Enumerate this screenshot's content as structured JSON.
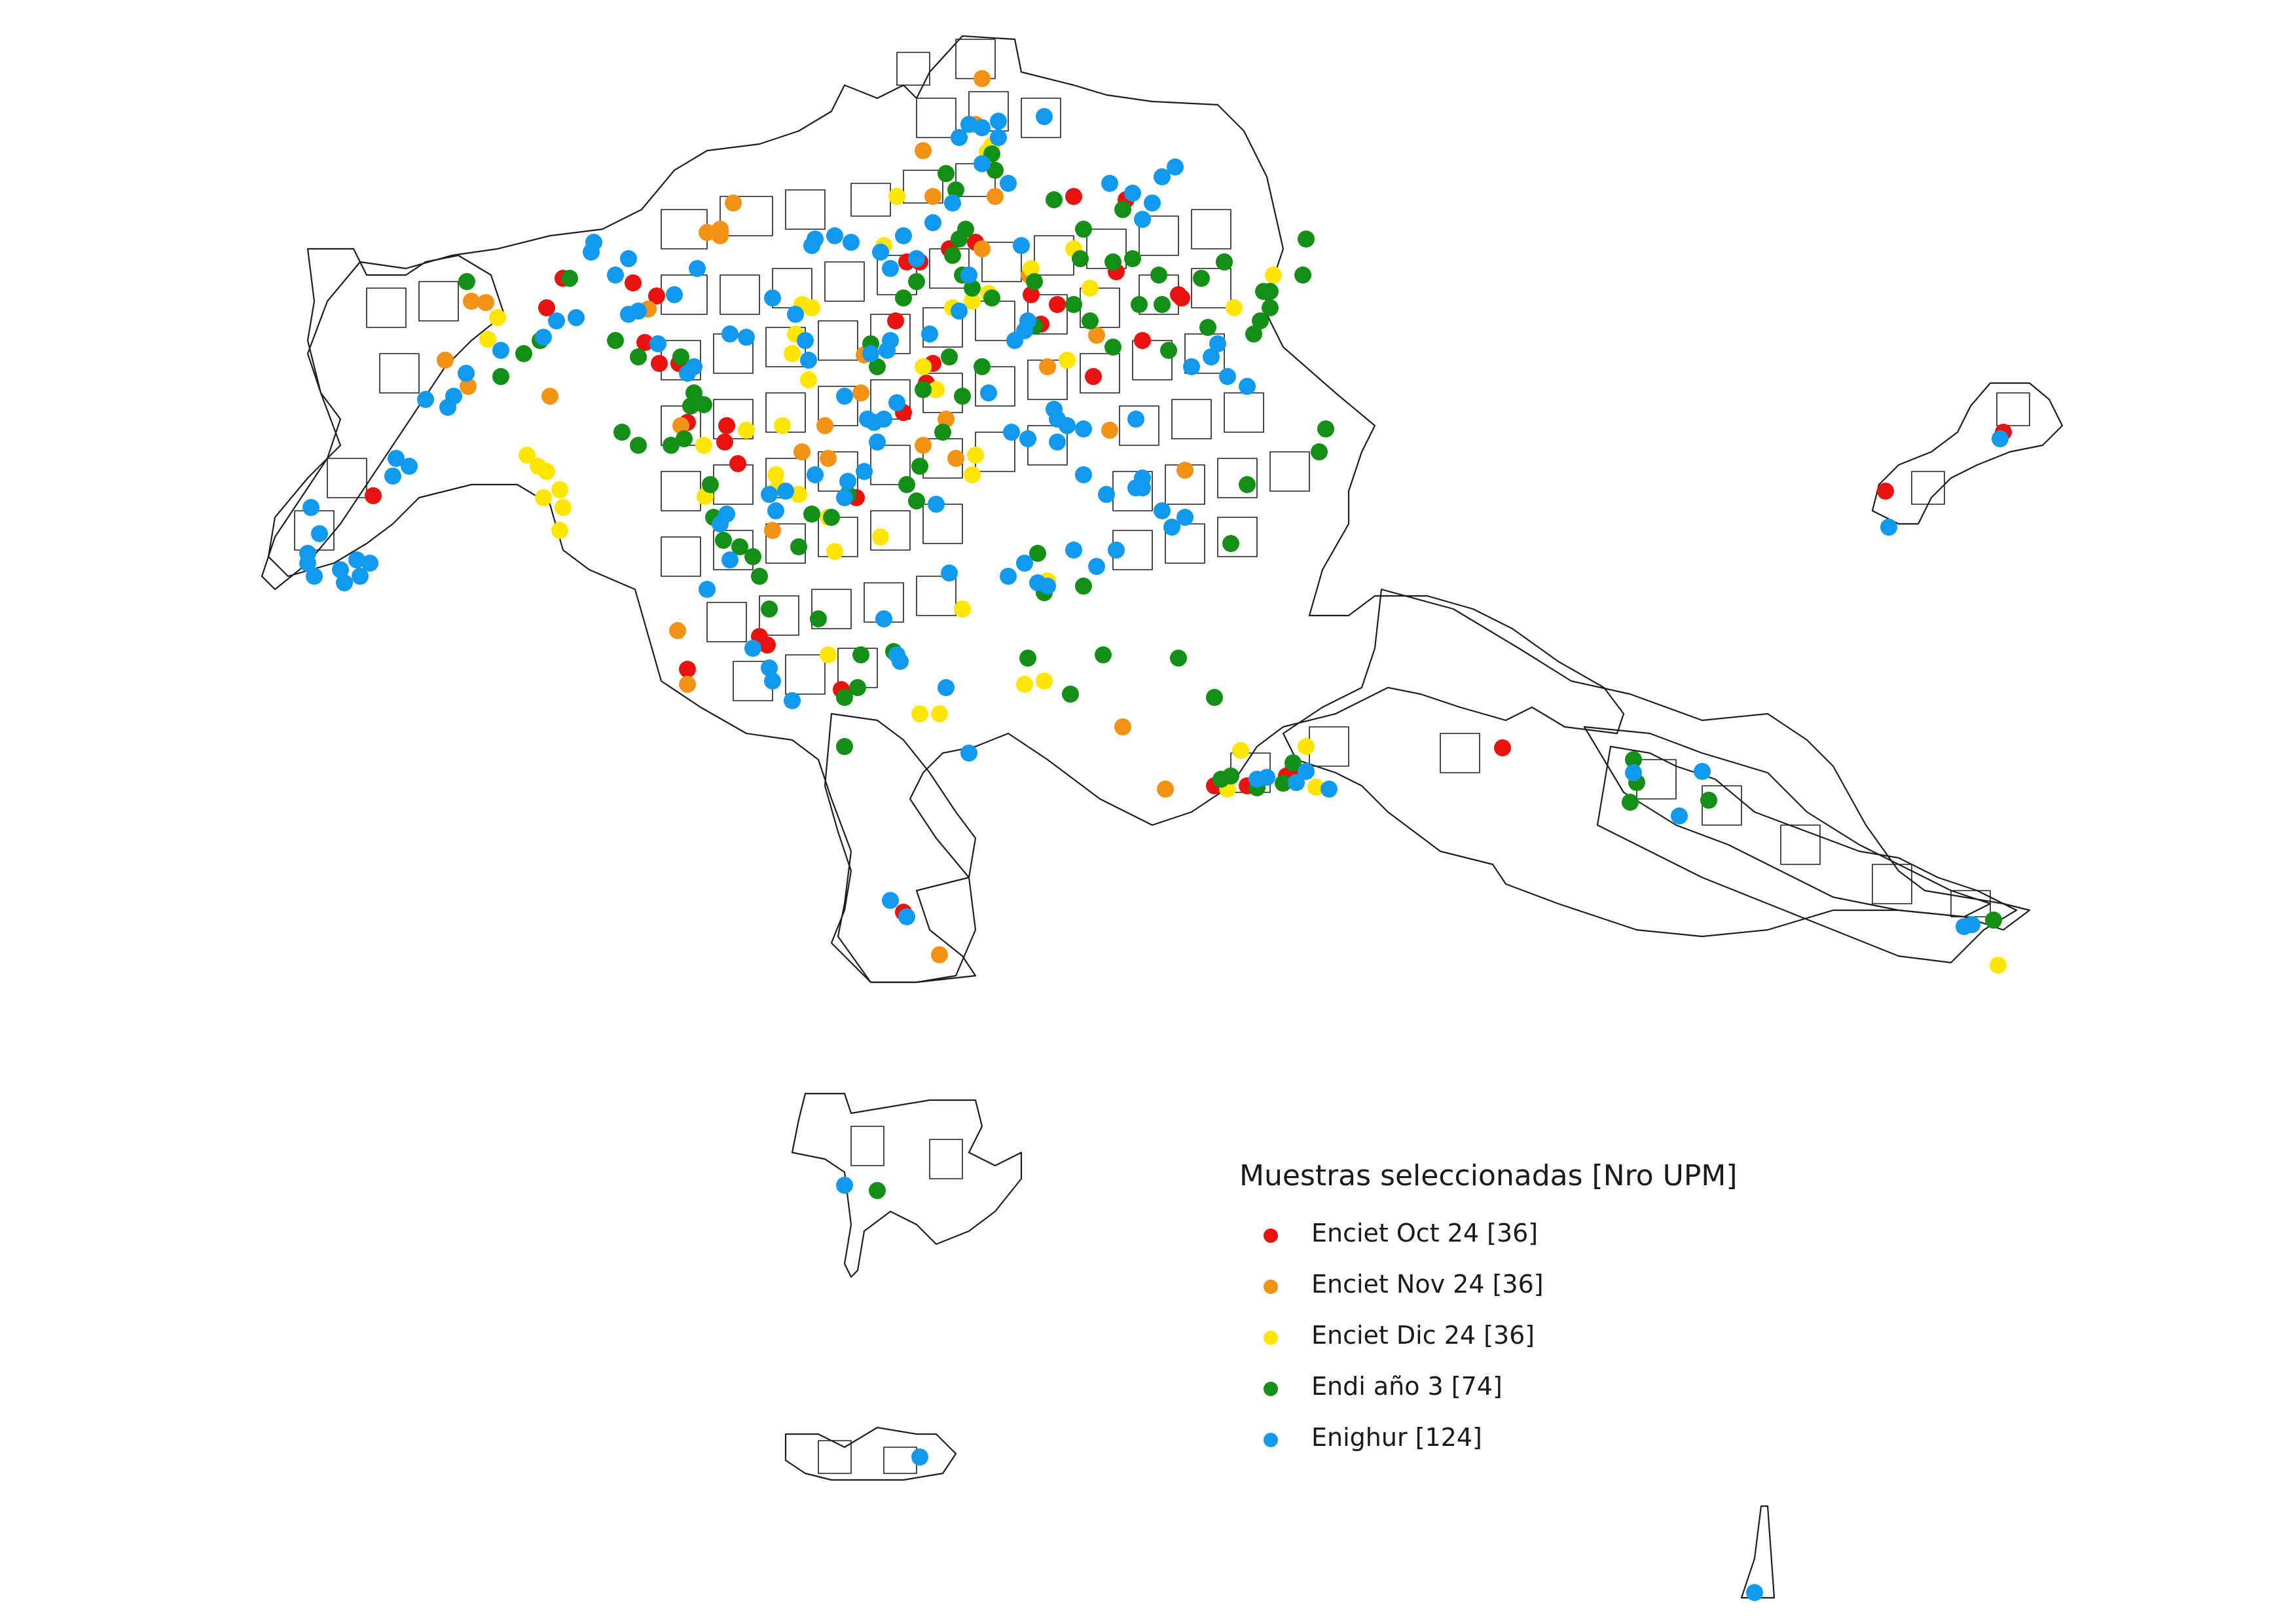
{
  "legend": {
    "title": "Muestras seleccionadas [Nro UPM]",
    "items": [
      {
        "label": "Enciet Oct 24 [36]",
        "color": "#e8130f"
      },
      {
        "label": "Enciet Nov 24 [36]",
        "color": "#f39214"
      },
      {
        "label": "Enciet Dic 24 [36]",
        "color": "#ffe600"
      },
      {
        "label": "Endi año 3 [74]",
        "color": "#138f15"
      },
      {
        "label": "Enighur [124]",
        "color": "#1199ee"
      }
    ]
  },
  "map_style": {
    "boundary_color": "#1e1e1e",
    "background": "#ffffff"
  }
}
